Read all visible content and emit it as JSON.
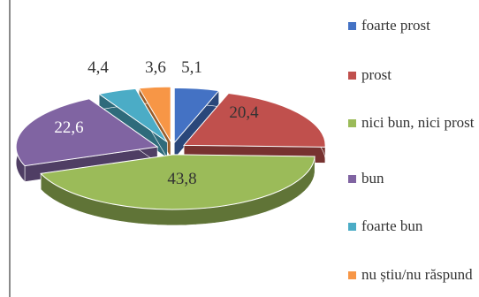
{
  "chart_data": {
    "type": "pie",
    "style": "3d-exploded",
    "legend_position": "right",
    "categories": [
      "foarte prost",
      "prost",
      "nici bun, nici prost",
      "bun",
      "foarte bun",
      "nu știu/nu răspund"
    ],
    "values": [
      5.1,
      20.4,
      43.8,
      22.6,
      4.4,
      3.6
    ],
    "value_labels": [
      "5,1",
      "20,4",
      "43,8",
      "22,6",
      "4,4",
      "3,6"
    ],
    "colors": [
      "#4472C4",
      "#C0504D",
      "#9BBB59",
      "#8064A2",
      "#4BACC6",
      "#F79646"
    ],
    "legend": [
      {
        "label": "foarte prost",
        "color": "#4472C4"
      },
      {
        "label": "prost",
        "color": "#C0504D"
      },
      {
        "label": "nici bun, nici prost",
        "color": "#9BBB59"
      },
      {
        "label": "bun",
        "color": "#8064A2"
      },
      {
        "label": "foarte bun",
        "color": "#4BACC6"
      },
      {
        "label": "nu știu/nu răspund",
        "color": "#F79646"
      }
    ]
  }
}
